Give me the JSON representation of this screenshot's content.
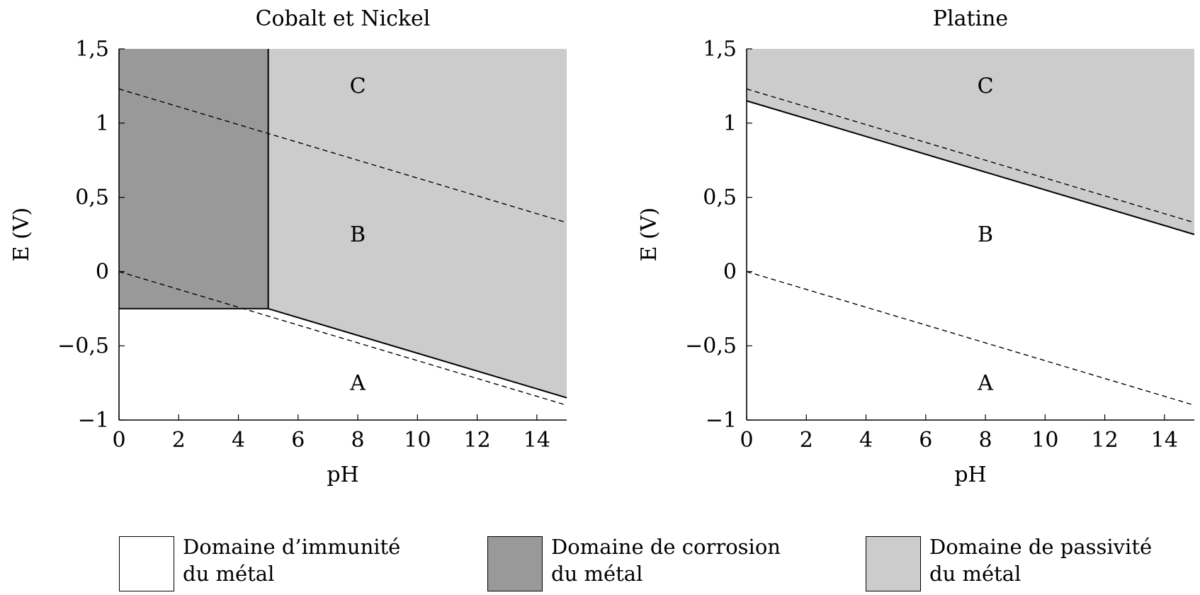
{
  "chart_data": [
    {
      "type": "area",
      "title": "Cobalt et Nickel",
      "xlabel": "pH",
      "ylabel": "E (V)",
      "xlim": [
        0,
        15
      ],
      "ylim": [
        -1,
        1.5
      ],
      "xticks": [
        0,
        2,
        4,
        6,
        8,
        10,
        12,
        14
      ],
      "xtick_labels": [
        "0",
        "2",
        "4",
        "6",
        "8",
        "10",
        "12",
        "14"
      ],
      "yticks": [
        -1,
        -0.5,
        0,
        0.5,
        1,
        1.5
      ],
      "ytick_labels": [
        "−1",
        "−0,5",
        "0",
        "0,5",
        "1",
        "1,5"
      ],
      "regions": [
        {
          "name": "immunity",
          "color": "#ffffff",
          "polygon": [
            [
              0,
              -1
            ],
            [
              0,
              -0.25
            ],
            [
              5,
              -0.25
            ],
            [
              15,
              -0.85
            ],
            [
              15,
              -1
            ]
          ]
        },
        {
          "name": "corrosion",
          "color": "#999999",
          "polygon": [
            [
              0,
              -0.25
            ],
            [
              0,
              1.5
            ],
            [
              5,
              1.5
            ],
            [
              5,
              -0.25
            ]
          ]
        },
        {
          "name": "passivity",
          "color": "#cccccc",
          "polygon": [
            [
              5,
              1.5
            ],
            [
              15,
              1.5
            ],
            [
              15,
              -0.85
            ],
            [
              5,
              -0.25
            ]
          ]
        }
      ],
      "boundaries": [
        {
          "points": [
            [
              0,
              -0.25
            ],
            [
              5,
              -0.25
            ]
          ]
        },
        {
          "points": [
            [
              5,
              -0.25
            ],
            [
              5,
              1.5
            ]
          ]
        },
        {
          "points": [
            [
              5,
              -0.25
            ],
            [
              15,
              -0.85
            ]
          ]
        }
      ],
      "dashed_lines": [
        {
          "points": [
            [
              0,
              1.23
            ],
            [
              15,
              0.33
            ]
          ]
        },
        {
          "points": [
            [
              0,
              0
            ],
            [
              15,
              -0.9
            ]
          ]
        }
      ],
      "annotations": [
        {
          "text": "C",
          "x": 8,
          "y": 1.25
        },
        {
          "text": "B",
          "x": 8,
          "y": 0.25
        },
        {
          "text": "A",
          "x": 8,
          "y": -0.75
        }
      ]
    },
    {
      "type": "area",
      "title": "Platine",
      "xlabel": "pH",
      "ylabel": "E (V)",
      "xlim": [
        0,
        15
      ],
      "ylim": [
        -1,
        1.5
      ],
      "xticks": [
        0,
        2,
        4,
        6,
        8,
        10,
        12,
        14
      ],
      "xtick_labels": [
        "0",
        "2",
        "4",
        "6",
        "8",
        "10",
        "12",
        "14"
      ],
      "yticks": [
        -1,
        -0.5,
        0,
        0.5,
        1,
        1.5
      ],
      "ytick_labels": [
        "−1",
        "−0,5",
        "0",
        "0,5",
        "1",
        "1,5"
      ],
      "regions": [
        {
          "name": "immunity",
          "color": "#ffffff",
          "polygon": [
            [
              0,
              -1
            ],
            [
              0,
              1.15
            ],
            [
              15,
              0.25
            ],
            [
              15,
              -1
            ]
          ]
        },
        {
          "name": "passivity",
          "color": "#cccccc",
          "polygon": [
            [
              0,
              1.15
            ],
            [
              0,
              1.5
            ],
            [
              15,
              1.5
            ],
            [
              15,
              0.25
            ]
          ]
        }
      ],
      "boundaries": [
        {
          "points": [
            [
              0,
              1.15
            ],
            [
              15,
              0.25
            ]
          ]
        }
      ],
      "dashed_lines": [
        {
          "points": [
            [
              0,
              1.23
            ],
            [
              15,
              0.33
            ]
          ]
        },
        {
          "points": [
            [
              0,
              0
            ],
            [
              15,
              -0.9
            ]
          ]
        }
      ],
      "annotations": [
        {
          "text": "C",
          "x": 8,
          "y": 1.25
        },
        {
          "text": "B",
          "x": 8,
          "y": 0.25
        },
        {
          "text": "A",
          "x": 8,
          "y": -0.75
        }
      ]
    }
  ],
  "legend": [
    {
      "line1": "Domaine d’immunité",
      "line2": "du métal",
      "color": "#ffffff"
    },
    {
      "line1": "Domaine de corrosion",
      "line2": "du métal",
      "color": "#999999"
    },
    {
      "line1": "Domaine de passivité",
      "line2": "du métal",
      "color": "#cccccc"
    }
  ]
}
